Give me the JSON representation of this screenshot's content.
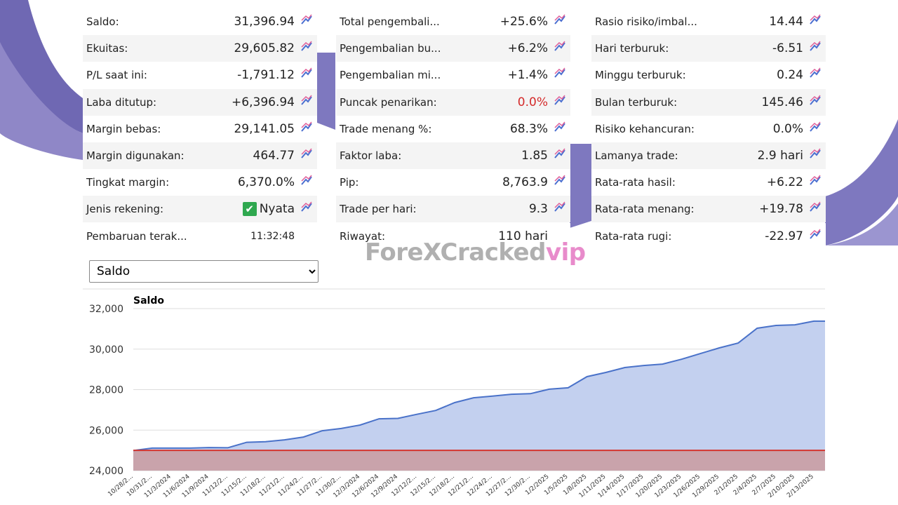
{
  "stats": {
    "columns": [
      [
        {
          "label": "Saldo:",
          "value": "31,396.94"
        },
        {
          "label": "Ekuitas:",
          "value": "29,605.82"
        },
        {
          "label": "P/L saat ini:",
          "value": "-1,791.12"
        },
        {
          "label": "Laba ditutup:",
          "value": "+6,396.94"
        },
        {
          "label": "Margin bebas:",
          "value": "29,141.05"
        },
        {
          "label": "Margin digunakan:",
          "value": "464.77"
        },
        {
          "label": "Tingkat margin:",
          "value": "6,370.0%"
        },
        {
          "label": "Jenis rekening:",
          "value": "Nyata",
          "icon": "check"
        },
        {
          "label": "Pembaruan terak...",
          "value": "11:32:48",
          "small": true
        }
      ],
      [
        {
          "label": "Total pengembali...",
          "value": "+25.6%"
        },
        {
          "label": "Pengembalian bu...",
          "value": "+6.2%"
        },
        {
          "label": "Pengembalian mi...",
          "value": "+1.4%"
        },
        {
          "label": "Puncak penarikan:",
          "value": "0.0%",
          "color": "#d42a2a"
        },
        {
          "label": "Trade menang %:",
          "value": "68.3%"
        },
        {
          "label": "Faktor laba:",
          "value": "1.85"
        },
        {
          "label": "Pip:",
          "value": "8,763.9"
        },
        {
          "label": "Trade per hari:",
          "value": "9.3"
        },
        {
          "label": "Riwayat:",
          "value": "110 hari"
        }
      ],
      [
        {
          "label": "Rasio risiko/imbal...",
          "value": "14.44"
        },
        {
          "label": "Hari terburuk:",
          "value": "-6.51"
        },
        {
          "label": "Minggu terburuk:",
          "value": "0.24"
        },
        {
          "label": "Bulan terburuk:",
          "value": "145.46"
        },
        {
          "label": "Risiko kehancuran:",
          "value": "0.0%"
        },
        {
          "label": "Lamanya trade:",
          "value": "2.9 hari"
        },
        {
          "label": "Rata-rata hasil:",
          "value": "+6.22"
        },
        {
          "label": "Rata-rata menang:",
          "value": "+19.78"
        },
        {
          "label": "Rata-rata rugi:",
          "value": "-22.97"
        }
      ]
    ]
  },
  "select": {
    "value": "Saldo"
  },
  "watermark": {
    "text": "ForeXCracked",
    "suffix": "vip"
  },
  "chart_data": {
    "type": "area",
    "title": "Saldo",
    "x": [
      "10/28/2...",
      "10/31/2...",
      "11/3/2024",
      "11/6/2024",
      "11/9/2024",
      "11/12/2...",
      "11/15/2...",
      "11/18/2...",
      "11/21/2...",
      "11/24/2...",
      "11/27/2...",
      "11/30/2...",
      "12/3/2024",
      "12/6/2024",
      "12/9/2024",
      "12/12/2...",
      "12/15/2...",
      "12/18/2...",
      "12/21/2...",
      "12/24/2...",
      "12/27/2...",
      "12/30/2...",
      "1/2/2025",
      "1/5/2025",
      "1/8/2025",
      "1/11/2025",
      "1/14/2025",
      "1/17/2025",
      "1/20/2025",
      "1/23/2025",
      "1/26/2025",
      "1/29/2025",
      "2/1/2025",
      "2/4/2025",
      "2/7/2025",
      "2/10/2025",
      "2/13/2025"
    ],
    "values": [
      24990,
      25110,
      25110,
      25110,
      25140,
      25130,
      25400,
      25430,
      25520,
      25660,
      25970,
      26080,
      26250,
      26560,
      26580,
      26780,
      26970,
      27360,
      27600,
      27680,
      27770,
      27800,
      28020,
      28090,
      28640,
      28850,
      29090,
      29190,
      29260,
      29500,
      29780,
      30060,
      30300,
      31030,
      31170,
      31200,
      31380
    ],
    "color": "#4a72c9",
    "fill": "#c3d0ef",
    "baseline": {
      "value": 25000,
      "color": "#d4352e",
      "fill": "#c9a3ab"
    },
    "ylim": [
      24000,
      32000
    ],
    "yticks": [
      {
        "value": 24000,
        "label": "24,000"
      },
      {
        "value": 26000,
        "label": "26,000"
      },
      {
        "value": 28000,
        "label": "28,000"
      },
      {
        "value": 30000,
        "label": "30,000"
      },
      {
        "value": 32000,
        "label": "32,000"
      }
    ],
    "grid": true
  }
}
